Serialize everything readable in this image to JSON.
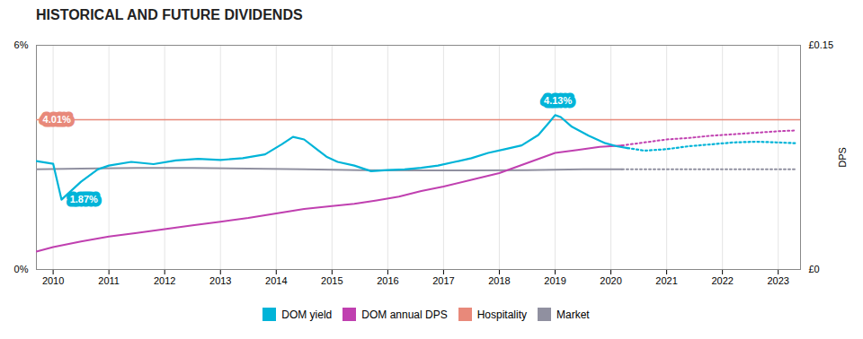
{
  "chart_data": {
    "type": "line",
    "title": "HISTORICAL AND FUTURE DIVIDENDS",
    "xlim": [
      2009.7,
      2023.4
    ],
    "xticks": [
      2010,
      2011,
      2012,
      2013,
      2014,
      2015,
      2016,
      2017,
      2018,
      2019,
      2020,
      2021,
      2022,
      2023
    ],
    "ylim": [
      0.0,
      0.06
    ],
    "yticks": [
      {
        "value": 0.0,
        "label": "0%"
      },
      {
        "value": 0.06,
        "label": "6%"
      }
    ],
    "y2lim": [
      0.0,
      0.15
    ],
    "y2ticks": [
      {
        "value": 0.0,
        "label": "£0"
      },
      {
        "value": 0.15,
        "label": "£0.15"
      }
    ],
    "y2label": "DPS",
    "grid": "x",
    "legend": "bottom",
    "series": [
      {
        "name": "DOM yield",
        "color": "#00b4d8",
        "line_style": "solid",
        "x": [
          2009.7,
          2010.0,
          2010.15,
          2010.5,
          2010.8,
          2011.0,
          2011.4,
          2011.8,
          2012.2,
          2012.6,
          2013.0,
          2013.4,
          2013.8,
          2014.1,
          2014.3,
          2014.5,
          2014.7,
          2014.9,
          2015.1,
          2015.4,
          2015.7,
          2016.0,
          2016.3,
          2016.6,
          2016.9,
          2017.2,
          2017.5,
          2017.8,
          2018.1,
          2018.4,
          2018.7,
          2018.9,
          2019.0,
          2019.1,
          2019.3,
          2019.6,
          2019.9,
          2020.1,
          2020.3
        ],
        "values": [
          0.029,
          0.0283,
          0.0187,
          0.0235,
          0.0268,
          0.0278,
          0.0288,
          0.0282,
          0.0292,
          0.0296,
          0.0293,
          0.0298,
          0.0308,
          0.0335,
          0.0355,
          0.0348,
          0.0325,
          0.0302,
          0.0288,
          0.0278,
          0.0263,
          0.0266,
          0.0268,
          0.0272,
          0.0278,
          0.0288,
          0.0298,
          0.0312,
          0.0322,
          0.0332,
          0.036,
          0.0395,
          0.0413,
          0.0408,
          0.0382,
          0.0358,
          0.0338,
          0.033,
          0.0325
        ]
      },
      {
        "name": "DOM yield",
        "color": "#00b4d8",
        "line_style": "dotted",
        "x": [
          2020.3,
          2020.6,
          2021.0,
          2021.4,
          2021.8,
          2022.2,
          2022.6,
          2023.0,
          2023.3
        ],
        "values": [
          0.0325,
          0.0318,
          0.0322,
          0.033,
          0.0335,
          0.034,
          0.0342,
          0.034,
          0.0338
        ]
      },
      {
        "name": "DOM annual DPS",
        "color": "#c040b0",
        "line_style": "solid",
        "x": [
          2009.7,
          2010.0,
          2010.5,
          2011.0,
          2011.5,
          2012.0,
          2012.5,
          2013.0,
          2013.5,
          2014.0,
          2014.5,
          2015.0,
          2015.4,
          2015.8,
          2016.2,
          2016.6,
          2017.0,
          2017.5,
          2018.0,
          2018.5,
          2019.0,
          2019.4,
          2019.8,
          2020.2
        ],
        "values": [
          0.0048,
          0.006,
          0.0075,
          0.0088,
          0.0098,
          0.0108,
          0.0118,
          0.0128,
          0.0138,
          0.015,
          0.0162,
          0.017,
          0.0176,
          0.0185,
          0.0195,
          0.021,
          0.0222,
          0.024,
          0.0258,
          0.0285,
          0.0312,
          0.032,
          0.0328,
          0.0332
        ]
      },
      {
        "name": "DOM annual DPS",
        "color": "#c040b0",
        "line_style": "dotted",
        "x": [
          2020.2,
          2020.6,
          2021.0,
          2021.4,
          2021.8,
          2022.2,
          2022.6,
          2023.0,
          2023.3
        ],
        "values": [
          0.0332,
          0.034,
          0.0348,
          0.0352,
          0.0358,
          0.0362,
          0.0366,
          0.037,
          0.0372
        ]
      },
      {
        "name": "Hospitality",
        "color": "#e8897a",
        "type": "rule",
        "line_style": "solid",
        "values": [
          0.0401
        ]
      },
      {
        "name": "Market",
        "color": "#9090a0",
        "line_style": "solid",
        "x": [
          2009.7,
          2010.5,
          2011.5,
          2012.5,
          2013.5,
          2014.5,
          2015.5,
          2016.5,
          2017.5,
          2018.5,
          2019.5,
          2020.2
        ],
        "values": [
          0.0268,
          0.027,
          0.0272,
          0.0272,
          0.027,
          0.0268,
          0.0266,
          0.0265,
          0.0265,
          0.0266,
          0.0268,
          0.0268
        ]
      },
      {
        "name": "Market",
        "color": "#9090a0",
        "line_style": "dotted",
        "x": [
          2020.2,
          2020.6,
          2021.0,
          2021.5,
          2022.0,
          2022.5,
          2023.0,
          2023.3
        ],
        "values": [
          0.0268,
          0.0268,
          0.0268,
          0.0268,
          0.0268,
          0.0268,
          0.0268,
          0.0268
        ]
      }
    ],
    "annotations": [
      {
        "text": "1.87%",
        "x": 2010.55,
        "y": 0.0187,
        "color": "#00b4d8"
      },
      {
        "text": "4.13%",
        "x": 2019.05,
        "y": 0.0413,
        "color": "#00b4d8"
      },
      {
        "text": "4.01%",
        "x": 2009.75,
        "y": 0.0401,
        "color": "#e8897a"
      }
    ]
  }
}
